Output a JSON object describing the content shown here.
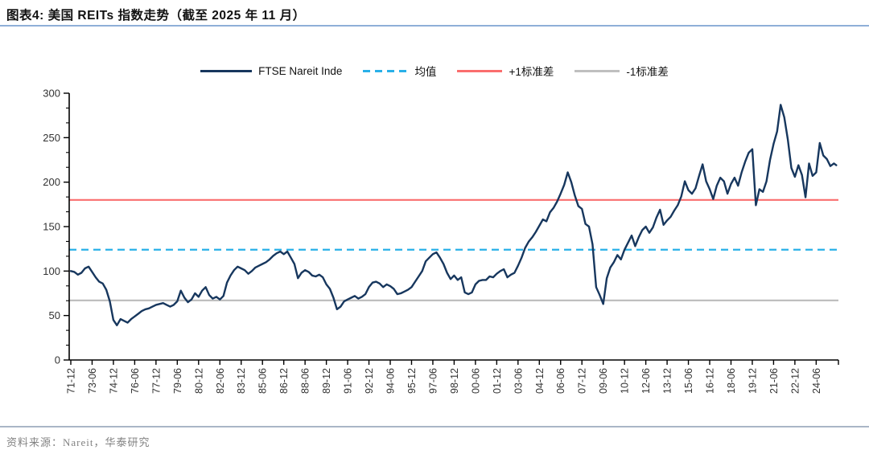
{
  "figure": {
    "title": "图表4:  美国 REITs 指数走势（截至 2025 年 11 月）",
    "source": "资料来源：Nareit，华泰研究"
  },
  "chart_data": {
    "type": "line",
    "title": "美国 REITs 指数走势（截至 2025 年 11 月）",
    "legend_position": "top",
    "grid": false,
    "ylim": [
      0,
      300
    ],
    "yticks": [
      0,
      50,
      100,
      150,
      200,
      250,
      300
    ],
    "xtick_labels": [
      "71-12",
      "73-06",
      "74-12",
      "76-06",
      "77-12",
      "79-06",
      "80-12",
      "82-06",
      "83-12",
      "85-06",
      "86-12",
      "88-06",
      "89-12",
      "91-06",
      "92-12",
      "94-06",
      "95-12",
      "97-06",
      "98-12",
      "00-06",
      "01-12",
      "03-06",
      "04-12",
      "06-06",
      "07-12",
      "09-06",
      "10-12",
      "12-06",
      "13-12",
      "15-06",
      "16-12",
      "18-06",
      "19-12",
      "21-06",
      "22-12",
      "24-06"
    ],
    "series": [
      {
        "name": "FTSE Nareit Inde",
        "style": "solid",
        "color": "#17375e",
        "x": [
          "71-12",
          "72-03",
          "72-06",
          "72-09",
          "72-12",
          "73-03",
          "73-06",
          "73-09",
          "73-12",
          "74-03",
          "74-06",
          "74-09",
          "74-12",
          "75-03",
          "75-06",
          "75-09",
          "75-12",
          "76-03",
          "76-06",
          "76-09",
          "76-12",
          "77-03",
          "77-06",
          "77-09",
          "77-12",
          "78-03",
          "78-06",
          "78-09",
          "78-12",
          "79-03",
          "79-06",
          "79-09",
          "79-12",
          "80-03",
          "80-06",
          "80-09",
          "80-12",
          "81-03",
          "81-06",
          "81-09",
          "81-12",
          "82-03",
          "82-06",
          "82-09",
          "82-12",
          "83-03",
          "83-06",
          "83-09",
          "83-12",
          "84-03",
          "84-06",
          "84-09",
          "84-12",
          "85-03",
          "85-06",
          "85-09",
          "85-12",
          "86-03",
          "86-06",
          "86-09",
          "86-12",
          "87-03",
          "87-06",
          "87-09",
          "87-12",
          "88-03",
          "88-06",
          "88-09",
          "88-12",
          "89-03",
          "89-06",
          "89-09",
          "89-12",
          "90-03",
          "90-06",
          "90-09",
          "90-12",
          "91-03",
          "91-06",
          "91-09",
          "91-12",
          "92-03",
          "92-06",
          "92-09",
          "92-12",
          "93-03",
          "93-06",
          "93-09",
          "93-12",
          "94-03",
          "94-06",
          "94-09",
          "94-12",
          "95-03",
          "95-06",
          "95-09",
          "95-12",
          "96-03",
          "96-06",
          "96-09",
          "96-12",
          "97-03",
          "97-06",
          "97-09",
          "97-12",
          "98-03",
          "98-06",
          "98-09",
          "98-12",
          "99-03",
          "99-06",
          "99-09",
          "99-12",
          "00-03",
          "00-06",
          "00-09",
          "00-12",
          "01-03",
          "01-06",
          "01-09",
          "01-12",
          "02-03",
          "02-06",
          "02-09",
          "02-12",
          "03-03",
          "03-06",
          "03-09",
          "03-12",
          "04-03",
          "04-06",
          "04-09",
          "04-12",
          "05-03",
          "05-06",
          "05-09",
          "05-12",
          "06-03",
          "06-06",
          "06-09",
          "06-12",
          "07-03",
          "07-06",
          "07-09",
          "07-12",
          "08-03",
          "08-06",
          "08-09",
          "08-12",
          "09-03",
          "09-06",
          "09-09",
          "09-12",
          "10-03",
          "10-06",
          "10-09",
          "10-12",
          "11-03",
          "11-06",
          "11-09",
          "11-12",
          "12-03",
          "12-06",
          "12-09",
          "12-12",
          "13-03",
          "13-06",
          "13-09",
          "13-12",
          "14-03",
          "14-06",
          "14-09",
          "14-12",
          "15-03",
          "15-06",
          "15-09",
          "15-12",
          "16-03",
          "16-06",
          "16-09",
          "16-12",
          "17-03",
          "17-06",
          "17-09",
          "17-12",
          "18-03",
          "18-06",
          "18-09",
          "18-12",
          "19-03",
          "19-06",
          "19-09",
          "19-12",
          "20-03",
          "20-06",
          "20-09",
          "20-12",
          "21-03",
          "21-06",
          "21-09",
          "21-12",
          "22-03",
          "22-06",
          "22-09",
          "22-12",
          "23-03",
          "23-06",
          "23-09",
          "23-12",
          "24-03",
          "24-06",
          "24-09",
          "24-12",
          "25-03",
          "25-06",
          "25-09",
          "25-11"
        ],
        "values": [
          100,
          99,
          96,
          98,
          103,
          105,
          99,
          93,
          88,
          86,
          79,
          66,
          45,
          39,
          46,
          44,
          42,
          46,
          49,
          52,
          55,
          57,
          58,
          60,
          62,
          63,
          64,
          62,
          60,
          62,
          66,
          78,
          70,
          65,
          68,
          75,
          71,
          78,
          82,
          73,
          69,
          71,
          68,
          72,
          87,
          95,
          101,
          105,
          103,
          101,
          97,
          100,
          104,
          106,
          108,
          110,
          113,
          117,
          120,
          122,
          119,
          122,
          115,
          108,
          92,
          98,
          101,
          99,
          95,
          94,
          96,
          93,
          85,
          80,
          70,
          57,
          60,
          66,
          68,
          70,
          72,
          69,
          71,
          74,
          82,
          87,
          88,
          86,
          82,
          85,
          83,
          80,
          74,
          75,
          77,
          79,
          82,
          88,
          94,
          100,
          111,
          115,
          119,
          121,
          115,
          108,
          98,
          91,
          95,
          90,
          93,
          76,
          74,
          76,
          85,
          89,
          90,
          90,
          94,
          93,
          97,
          100,
          102,
          93,
          96,
          98,
          106,
          115,
          126,
          133,
          138,
          144,
          151,
          158,
          156,
          166,
          171,
          178,
          187,
          197,
          211,
          200,
          185,
          173,
          170,
          153,
          150,
          130,
          82,
          73,
          63,
          92,
          104,
          110,
          118,
          113,
          124,
          132,
          140,
          128,
          138,
          146,
          150,
          143,
          149,
          160,
          169,
          152,
          157,
          161,
          168,
          174,
          184,
          201,
          191,
          187,
          193,
          207,
          220,
          201,
          192,
          181,
          196,
          205,
          201,
          187,
          198,
          205,
          196,
          211,
          223,
          233,
          237,
          174,
          192,
          189,
          201,
          225,
          243,
          257,
          287,
          273,
          248,
          216,
          206,
          219,
          208,
          183,
          221,
          207,
          211,
          244,
          230,
          226,
          218,
          221,
          219
        ]
      },
      {
        "name": "均值",
        "style": "dashed",
        "color": "#29b0e8",
        "value": 124
      },
      {
        "name": "+1标准差",
        "style": "solid",
        "color": "#fa6e6e",
        "value": 180
      },
      {
        "name": "-1标准差",
        "style": "solid",
        "color": "#bfbfbf",
        "value": 67
      }
    ]
  }
}
